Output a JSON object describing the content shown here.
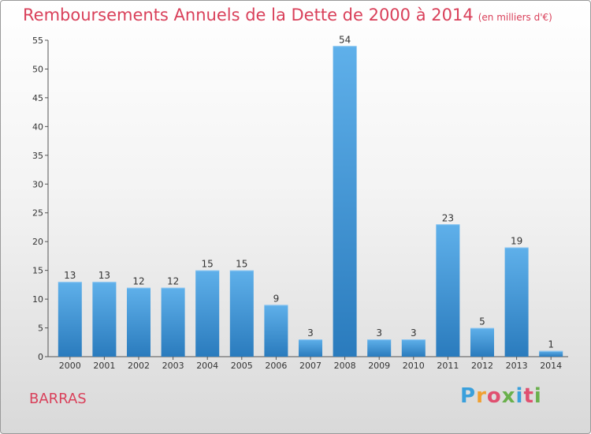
{
  "chart_data": {
    "type": "bar",
    "title": "Remboursements Annuels de la Dette de 2000 à 2014",
    "subtitle": "(en milliers d'€)",
    "categories": [
      "2000",
      "2001",
      "2002",
      "2003",
      "2004",
      "2005",
      "2006",
      "2007",
      "2008",
      "2009",
      "2010",
      "2011",
      "2012",
      "2013",
      "2014"
    ],
    "values": [
      13,
      13,
      12,
      12,
      15,
      15,
      9,
      3,
      54,
      3,
      3,
      23,
      5,
      19,
      1
    ],
    "ylim": [
      0,
      55
    ],
    "yticks": [
      0,
      5,
      10,
      15,
      20,
      25,
      30,
      35,
      40,
      45,
      50,
      55
    ],
    "xlabel": "",
    "ylabel": "",
    "grid": false
  },
  "commune": "BARRAS",
  "logo": {
    "letters": [
      "P",
      "r",
      "o",
      "x",
      "i",
      "t",
      "i"
    ],
    "colors": [
      "#3aa0dc",
      "#f0a030",
      "#e05070",
      "#6ab04c",
      "#3aa0dc",
      "#e05070",
      "#6ab04c"
    ]
  },
  "colors": {
    "bar_light": "#5fb0ea",
    "bar_dark": "#2a7bbd",
    "title": "#d9405a"
  }
}
